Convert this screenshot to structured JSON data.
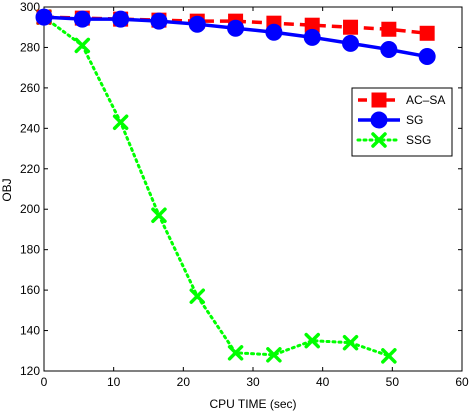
{
  "chart_data": {
    "type": "line",
    "xlabel": "CPU TIME (sec)",
    "ylabel": "OBJ",
    "xlim": [
      0,
      60
    ],
    "ylim": [
      120,
      300
    ],
    "xticks": [
      0,
      10,
      20,
      30,
      40,
      50,
      60
    ],
    "yticks": [
      120,
      140,
      160,
      180,
      200,
      220,
      240,
      260,
      280,
      300
    ],
    "grid": false,
    "legend_position": "right, upper-middle",
    "series": [
      {
        "name": "AC–SA",
        "color": "#ff0000",
        "line_style": "dashed",
        "marker": "square",
        "x": [
          0,
          5.5,
          11,
          16.5,
          22,
          27.5,
          33,
          38.5,
          44,
          49.5,
          55
        ],
        "y": [
          295,
          294.5,
          294,
          293.5,
          293,
          293,
          292,
          291,
          290,
          289,
          287
        ]
      },
      {
        "name": "SG",
        "color": "#0000ff",
        "line_style": "solid",
        "marker": "circle",
        "x": [
          0,
          5.5,
          11,
          16.5,
          22,
          27.5,
          33,
          38.5,
          44,
          49.5,
          55
        ],
        "y": [
          295,
          294,
          294,
          293,
          291.5,
          289.5,
          287.5,
          285,
          282,
          279,
          275.5
        ]
      },
      {
        "name": "SSG",
        "color": "#00ff00",
        "line_style": "dotted",
        "marker": "x",
        "x": [
          0,
          5.5,
          11,
          16.5,
          22,
          27.5,
          33,
          38.5,
          44,
          49.5
        ],
        "y": [
          295,
          281,
          243,
          197,
          157,
          129,
          128,
          135,
          134,
          127.5
        ]
      }
    ]
  }
}
